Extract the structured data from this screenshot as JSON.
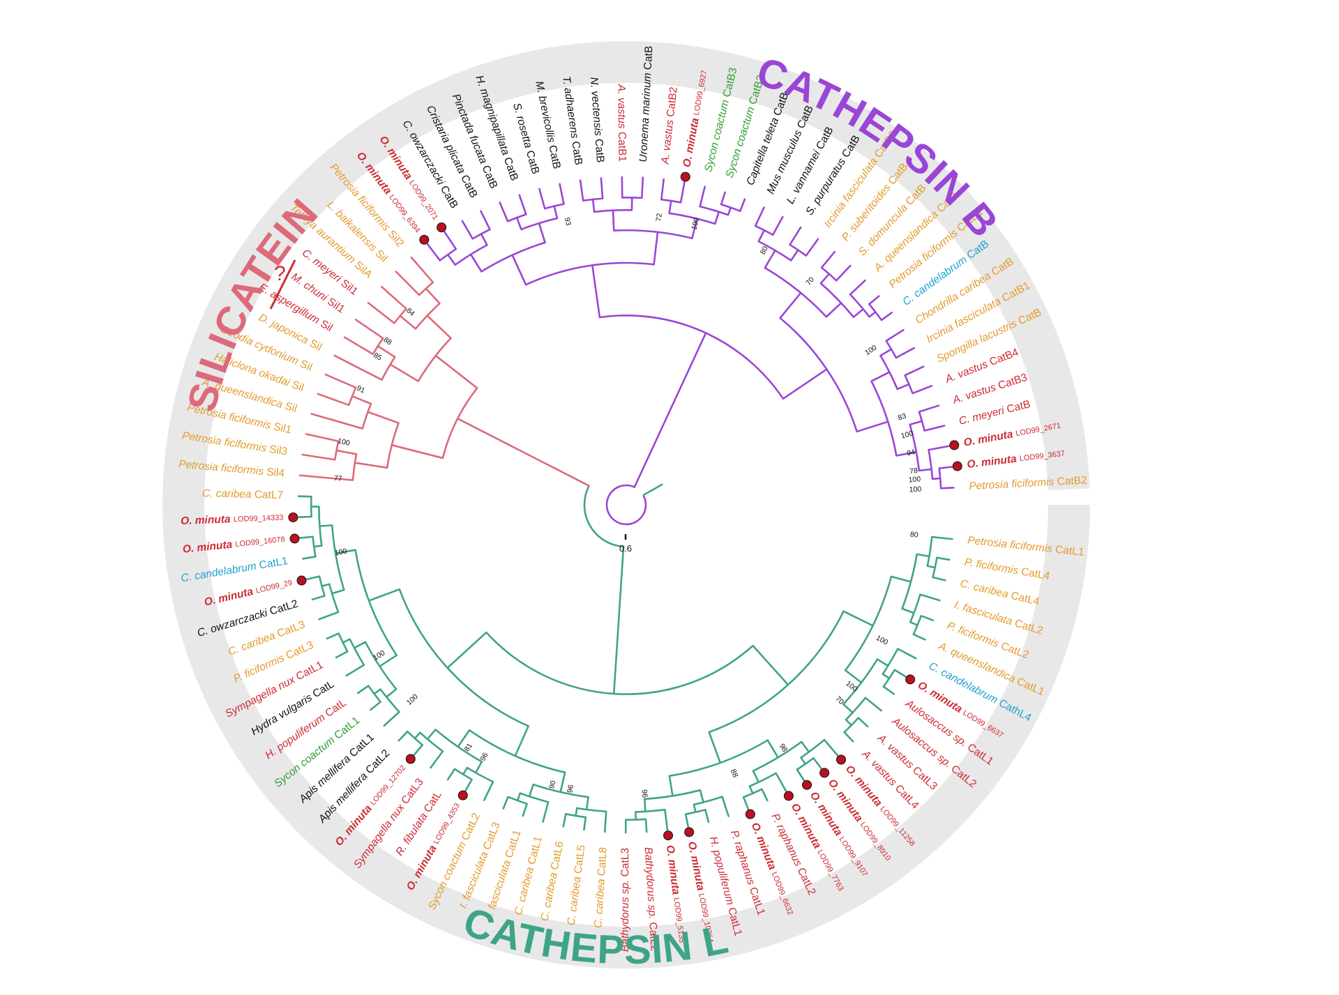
{
  "colors": {
    "silicatein": "#dc6a7a",
    "cathepsin_b": "#9a45d6",
    "cathepsin_l": "#3fa38a",
    "ring": "#e8e8e8",
    "sponge_demo": "#e39a2c",
    "sponge_hexa": "#cc2b33",
    "sponge_calc": "#2f9e2f",
    "sponge_homo": "#1ea3cc",
    "non_sponge": "#111111",
    "omin_dot": "#b8121f"
  },
  "clade_labels": {
    "silicatein": "SILICATEIN",
    "cathepsin_b": "CATHEPSIN B",
    "cathepsin_l": "CATHEPSIN L"
  },
  "annotation_question": "?",
  "scale_bar": {
    "value": 0.6,
    "label": "0.6"
  },
  "taxa": [
    {
      "species": "Petrosia ficiformis",
      "suffix": "CatB2",
      "color": "sponge_demo",
      "clade": "B"
    },
    {
      "species": "O. minuta",
      "suffix": "LOD99_3637",
      "color": "sponge_hexa",
      "bold": true,
      "dot": true,
      "clade": "B"
    },
    {
      "species": "O. minuta",
      "suffix": "LOD99_2671",
      "color": "sponge_hexa",
      "bold": true,
      "dot": true,
      "clade": "B"
    },
    {
      "species": "C. meyeri",
      "suffix": "CatB",
      "color": "sponge_hexa",
      "clade": "B"
    },
    {
      "species": "A. vastus",
      "suffix": "CatB3",
      "color": "sponge_hexa",
      "clade": "B"
    },
    {
      "species": "A. vastus",
      "suffix": "CatB4",
      "color": "sponge_hexa",
      "clade": "B"
    },
    {
      "species": "Spongilla lacustris",
      "suffix": "CatB",
      "color": "sponge_demo",
      "clade": "B"
    },
    {
      "species": "Ircinia fasciculata",
      "suffix": "CatB1",
      "color": "sponge_demo",
      "clade": "B"
    },
    {
      "species": "Chondrilla caribea",
      "suffix": "CatB",
      "color": "sponge_demo",
      "clade": "B"
    },
    {
      "species": "C. candelabrum",
      "suffix": "CatB",
      "color": "sponge_homo",
      "clade": "B"
    },
    {
      "species": "Petrosia ficiformis",
      "suffix": "CatB1",
      "color": "sponge_demo",
      "clade": "B"
    },
    {
      "species": "A. queenslandica",
      "suffix": "CatB",
      "color": "sponge_demo",
      "clade": "B"
    },
    {
      "species": "S. domuncula",
      "suffix": "CatB",
      "color": "sponge_demo",
      "clade": "B"
    },
    {
      "species": "P. suberitoides",
      "suffix": "CatB",
      "color": "sponge_demo",
      "clade": "B"
    },
    {
      "species": "Ircinia fasciculata",
      "suffix": "CatB2",
      "color": "sponge_demo",
      "clade": "B"
    },
    {
      "species": "S. purpuratus",
      "suffix": "CatB",
      "color": "non_sponge",
      "clade": "B"
    },
    {
      "species": "L. vannamei",
      "suffix": "CatB",
      "color": "non_sponge",
      "clade": "B"
    },
    {
      "species": "Mus musculus",
      "suffix": "CatB",
      "color": "non_sponge",
      "clade": "B"
    },
    {
      "species": "Capitella teleta",
      "suffix": "CatB",
      "color": "non_sponge",
      "clade": "B"
    },
    {
      "species": "Sycon coactum",
      "suffix": "CatB2",
      "color": "sponge_calc",
      "clade": "B"
    },
    {
      "species": "Sycon coactum",
      "suffix": "CatB3",
      "color": "sponge_calc",
      "clade": "B"
    },
    {
      "species": "O. minuta",
      "suffix": "LOD99_6927",
      "color": "sponge_hexa",
      "bold": true,
      "dot": true,
      "clade": "B"
    },
    {
      "species": "A. vastus",
      "suffix": "CatB2",
      "color": "sponge_hexa",
      "clade": "B"
    },
    {
      "species": "Uronema marinum",
      "suffix": "CatB",
      "color": "non_sponge",
      "clade": "B"
    },
    {
      "species": "A. vastus",
      "suffix": "CatB1",
      "color": "sponge_hexa",
      "clade": "B"
    },
    {
      "species": "N. vectensis",
      "suffix": "CatB",
      "color": "non_sponge",
      "clade": "B"
    },
    {
      "species": "T. adhaerens",
      "suffix": "CatB",
      "color": "non_sponge",
      "clade": "B"
    },
    {
      "species": "M. brevicollis",
      "suffix": "CatB",
      "color": "non_sponge",
      "clade": "B"
    },
    {
      "species": "S. rosetta",
      "suffix": "CatB",
      "color": "non_sponge",
      "clade": "B"
    },
    {
      "species": "H. magnipapillata",
      "suffix": "CatB",
      "color": "non_sponge",
      "clade": "B"
    },
    {
      "species": "Pinctada fucata",
      "suffix": "CatB",
      "color": "non_sponge",
      "clade": "B"
    },
    {
      "species": "Cristaria plicata",
      "suffix": "CatB",
      "color": "non_sponge",
      "clade": "B"
    },
    {
      "species": "C. owzarczacki",
      "suffix": "CatB",
      "color": "non_sponge",
      "clade": "B"
    },
    {
      "species": "O. minuta",
      "suffix": "LOD99_2071",
      "color": "sponge_hexa",
      "bold": true,
      "dot": true,
      "clade": "B"
    },
    {
      "species": "O. minuta",
      "suffix": "LOD99_6394",
      "color": "sponge_hexa",
      "bold": true,
      "dot": true,
      "clade": "B"
    },
    {
      "species": "Petrosia ficiformis",
      "suffix": "Sil2",
      "color": "sponge_demo",
      "clade": "S"
    },
    {
      "species": "L. baikalensis",
      "suffix": "Sil",
      "color": "sponge_demo",
      "clade": "S"
    },
    {
      "species": "Tethya aurantium",
      "suffix": "SilA",
      "color": "sponge_demo",
      "clade": "S"
    },
    {
      "species": "C. meyeri",
      "suffix": "Sil1",
      "color": "sponge_hexa",
      "clade": "S"
    },
    {
      "species": "M. chuni",
      "suffix": "Sil1",
      "color": "sponge_hexa",
      "clade": "S"
    },
    {
      "species": "E. aspergillum",
      "suffix": "Sil",
      "color": "sponge_hexa",
      "clade": "S"
    },
    {
      "species": "D. japonica",
      "suffix": "Sil",
      "color": "sponge_demo",
      "clade": "S"
    },
    {
      "species": "Geodia cydonium",
      "suffix": "Sil",
      "color": "sponge_demo",
      "clade": "S"
    },
    {
      "species": "Haliclona okadai",
      "suffix": "Sil",
      "color": "sponge_demo",
      "clade": "S"
    },
    {
      "species": "A. queenslandica",
      "suffix": "Sil",
      "color": "sponge_demo",
      "clade": "S"
    },
    {
      "species": "Petrosia ficiformis",
      "suffix": "Sil1",
      "color": "sponge_demo",
      "clade": "S"
    },
    {
      "species": "Petrosia ficiformis",
      "suffix": "Sil3",
      "color": "sponge_demo",
      "clade": "S"
    },
    {
      "species": "Petrosia ficiformis",
      "suffix": "Sil4",
      "color": "sponge_demo",
      "clade": "S"
    },
    {
      "species": "C. caribea",
      "suffix": "CatL7",
      "color": "sponge_demo",
      "clade": "L"
    },
    {
      "species": "O. minuta",
      "suffix": "LOD99_14333",
      "color": "sponge_hexa",
      "bold": true,
      "dot": true,
      "clade": "L"
    },
    {
      "species": "O. minuta",
      "suffix": "LOD99_16078",
      "color": "sponge_hexa",
      "bold": true,
      "dot": true,
      "clade": "L"
    },
    {
      "species": "C. candelabrum",
      "suffix": "CatL1",
      "color": "sponge_homo",
      "clade": "L"
    },
    {
      "species": "O. minuta",
      "suffix": "LOD99_29",
      "color": "sponge_hexa",
      "bold": true,
      "dot": true,
      "clade": "L"
    },
    {
      "species": "C. owzarczacki",
      "suffix": "CatL2",
      "color": "non_sponge",
      "clade": "L"
    },
    {
      "species": "C. caribea",
      "suffix": "CatL3",
      "color": "sponge_demo",
      "clade": "L"
    },
    {
      "species": "P. ficiformis",
      "suffix": "CatL3",
      "color": "sponge_demo",
      "clade": "L"
    },
    {
      "species": "Sympagella nux",
      "suffix": "CatL1",
      "color": "sponge_hexa",
      "clade": "L"
    },
    {
      "species": "Hydra vulgaris",
      "suffix": "CatL",
      "color": "non_sponge",
      "clade": "L"
    },
    {
      "species": "H. populiferum",
      "suffix": "CatL",
      "color": "sponge_hexa",
      "clade": "L"
    },
    {
      "species": "Sycon coactum",
      "suffix": "CatL1",
      "color": "sponge_calc",
      "clade": "L"
    },
    {
      "species": "Apis mellifera",
      "suffix": "CatL1",
      "color": "non_sponge",
      "clade": "L"
    },
    {
      "species": "Apis mellifera",
      "suffix": "CatL2",
      "color": "non_sponge",
      "clade": "L"
    },
    {
      "species": "O. minuta",
      "suffix": "LOD99_12702",
      "color": "sponge_hexa",
      "bold": true,
      "dot": true,
      "clade": "L"
    },
    {
      "species": "Sympagella nux",
      "suffix": "CatL3",
      "color": "sponge_hexa",
      "clade": "L"
    },
    {
      "species": "R. fibulata",
      "suffix": "CatL",
      "color": "sponge_hexa",
      "clade": "L"
    },
    {
      "species": "O. minuta",
      "suffix": "LOD99_4353",
      "color": "sponge_hexa",
      "bold": true,
      "dot": true,
      "clade": "L"
    },
    {
      "species": "Sycon coactum",
      "suffix": "CatL2",
      "color": "sponge_demo",
      "clade": "L"
    },
    {
      "species": "I. fasciculata",
      "suffix": "CatL3",
      "color": "sponge_demo",
      "clade": "L"
    },
    {
      "species": "I. fasciculata",
      "suffix": "CatL1",
      "color": "sponge_demo",
      "clade": "L"
    },
    {
      "species": "C. caribea",
      "suffix": "CatL1",
      "color": "sponge_demo",
      "clade": "L"
    },
    {
      "species": "C. caribea",
      "suffix": "CatL6",
      "color": "sponge_demo",
      "clade": "L"
    },
    {
      "species": "C. caribea",
      "suffix": "CatL5",
      "color": "sponge_demo",
      "clade": "L"
    },
    {
      "species": "C. caribea",
      "suffix": "CatL8",
      "color": "sponge_demo",
      "clade": "L"
    },
    {
      "species": "Bathydorus sp.",
      "suffix": "CatL3",
      "color": "sponge_hexa",
      "clade": "L"
    },
    {
      "species": "Bathydorus sp.",
      "suffix": "CatL2",
      "color": "sponge_hexa",
      "clade": "L"
    },
    {
      "species": "O. minuta",
      "suffix": "LOD99_5135",
      "color": "sponge_hexa",
      "bold": true,
      "dot": true,
      "clade": "L"
    },
    {
      "species": "O. minuta",
      "suffix": "LOD99_10364",
      "color": "sponge_hexa",
      "bold": true,
      "dot": true,
      "clade": "L"
    },
    {
      "species": "H. populiferum",
      "suffix": "CatL1",
      "color": "sponge_hexa",
      "clade": "L"
    },
    {
      "species": "P. raphanus",
      "suffix": "CatL1",
      "color": "sponge_hexa",
      "clade": "L"
    },
    {
      "species": "O. minuta",
      "suffix": "LOD99_6632",
      "color": "sponge_hexa",
      "bold": true,
      "dot": true,
      "clade": "L"
    },
    {
      "species": "P. raphanus",
      "suffix": "CatL2",
      "color": "sponge_hexa",
      "clade": "L"
    },
    {
      "species": "O. minuta",
      "suffix": "LOD99_7763",
      "color": "sponge_hexa",
      "bold": true,
      "dot": true,
      "clade": "L"
    },
    {
      "species": "O. minuta",
      "suffix": "LOD99_9107",
      "color": "sponge_hexa",
      "bold": true,
      "dot": true,
      "clade": "L"
    },
    {
      "species": "O. minuta",
      "suffix": "LOD99_8910",
      "color": "sponge_hexa",
      "bold": true,
      "dot": true,
      "clade": "L"
    },
    {
      "species": "O. minuta",
      "suffix": "LOD99_11258",
      "color": "sponge_hexa",
      "bold": true,
      "dot": true,
      "clade": "L"
    },
    {
      "species": "A. vastus",
      "suffix": "CatL4",
      "color": "sponge_hexa",
      "clade": "L"
    },
    {
      "species": "A. vastus",
      "suffix": "CatL3",
      "color": "sponge_hexa",
      "clade": "L"
    },
    {
      "species": "Aulosaccus sp.",
      "suffix": "CatL2",
      "color": "sponge_hexa",
      "clade": "L"
    },
    {
      "species": "Aulosaccus sp.",
      "suffix": "CatL1",
      "color": "sponge_hexa",
      "clade": "L"
    },
    {
      "species": "O. minuta",
      "suffix": "LOD99_6637",
      "color": "sponge_hexa",
      "bold": true,
      "dot": true,
      "clade": "L"
    },
    {
      "species": "C. candelabrum",
      "suffix": "CathL4",
      "color": "sponge_homo",
      "clade": "L"
    },
    {
      "species": "A. queenslandica",
      "suffix": "CatL1",
      "color": "sponge_demo",
      "clade": "L"
    },
    {
      "species": "P. ficiformis",
      "suffix": "CatL2",
      "color": "sponge_demo",
      "clade": "L"
    },
    {
      "species": "I. fasciculata",
      "suffix": "CatL2",
      "color": "sponge_demo",
      "clade": "L"
    },
    {
      "species": "C. caribea",
      "suffix": "CatL4",
      "color": "sponge_demo",
      "clade": "L"
    },
    {
      "species": "P. ficiformis",
      "suffix": "CatL4",
      "color": "sponge_demo",
      "clade": "L"
    },
    {
      "species": "Petrosia ficiformis",
      "suffix": "CatL1",
      "color": "sponge_demo",
      "clade": "L"
    }
  ],
  "support_values": [
    {
      "label": "100",
      "near_tip": 0
    },
    {
      "label": "78",
      "near_tip": 1
    },
    {
      "label": "94",
      "near_tip": 2
    },
    {
      "label": "100",
      "near_tip": 3
    },
    {
      "label": "83",
      "near_tip": 4
    },
    {
      "label": "100",
      "near_tip": 8
    },
    {
      "label": "70",
      "near_tip": 13
    },
    {
      "label": "100",
      "near_tip": 20
    },
    {
      "label": "72",
      "near_tip": 22
    },
    {
      "label": "93",
      "near_tip": 27
    },
    {
      "label": "80",
      "near_tip": 16
    },
    {
      "label": "84",
      "near_tip": 37
    },
    {
      "label": "88",
      "near_tip": 39
    },
    {
      "label": "91",
      "near_tip": 42
    },
    {
      "label": "85",
      "near_tip": 40
    },
    {
      "label": "100",
      "near_tip": 45
    },
    {
      "label": "77",
      "near_tip": 47
    },
    {
      "label": "100",
      "near_tip": 51
    },
    {
      "label": "100",
      "near_tip": 57
    },
    {
      "label": "100",
      "near_tip": 60
    },
    {
      "label": "81",
      "near_tip": 64
    },
    {
      "label": "96",
      "near_tip": 65
    },
    {
      "label": "90",
      "near_tip": 69
    },
    {
      "label": "96",
      "near_tip": 70
    },
    {
      "label": "96",
      "near_tip": 74
    },
    {
      "label": "88",
      "near_tip": 79
    },
    {
      "label": "98",
      "near_tip": 82
    },
    {
      "label": "70",
      "near_tip": 86
    },
    {
      "label": "100",
      "near_tip": 87
    },
    {
      "label": "100",
      "near_tip": 90
    },
    {
      "label": "80",
      "near_tip": 96
    },
    {
      "label": "100",
      "near_tip": 99
    }
  ]
}
